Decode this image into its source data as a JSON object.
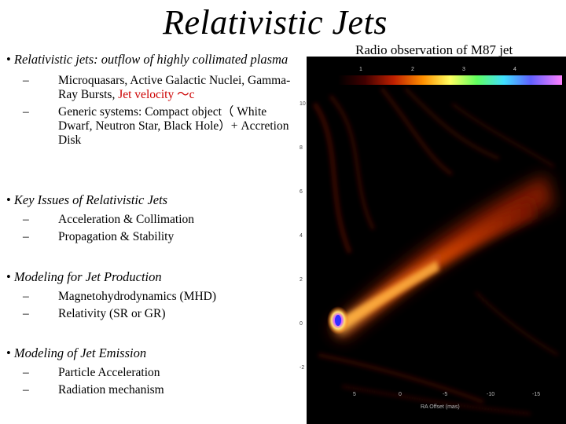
{
  "slide": {
    "title": "Relativistic Jets",
    "image_caption": "Radio observation of M87 jet",
    "sections": [
      {
        "heading": "Relativistic jets: outflow of highly collimated plasma",
        "items": [
          {
            "parts": [
              "Microquasars, Active Galactic Nuclei, Gamma-Ray Bursts, ",
              "Jet velocity ～c"
            ]
          },
          {
            "parts": [
              "Generic systems: Compact object（ White Dwarf, Neutron Star, Black Hole）+ Accretion Disk"
            ]
          }
        ]
      },
      {
        "heading": "Key Issues of Relativistic Jets",
        "items": [
          {
            "parts": [
              "Acceleration & Collimation"
            ]
          },
          {
            "parts": [
              "Propagation & Stability"
            ]
          }
        ]
      },
      {
        "heading": "Modeling for Jet Production",
        "items": [
          {
            "parts": [
              "Magnetohydrodynamics (MHD)"
            ]
          },
          {
            "parts": [
              "Relativity (SR or GR)"
            ]
          }
        ]
      },
      {
        "heading": "Modeling of  Jet Emission",
        "items": [
          {
            "parts": [
              "Particle Acceleration"
            ]
          },
          {
            "parts": [
              "Radiation mechanism"
            ]
          }
        ]
      }
    ],
    "bullet_glyph": "•",
    "dash_glyph": "–"
  },
  "figure": {
    "colorbar_ticks": [
      "1",
      "2",
      "3",
      "4"
    ],
    "y_ticks": [
      "10",
      "8",
      "6",
      "4",
      "2",
      "0",
      "-2"
    ],
    "x_ticks": [
      "5",
      "0",
      "-5",
      "-10",
      "-15"
    ],
    "x_label": "RA Offset (mas)",
    "colors": {
      "background": "#000000",
      "jet_outer": "#8a1a00",
      "jet_mid": "#e06010",
      "jet_core": "#ffe070",
      "core_blue": "#4040ff"
    }
  }
}
